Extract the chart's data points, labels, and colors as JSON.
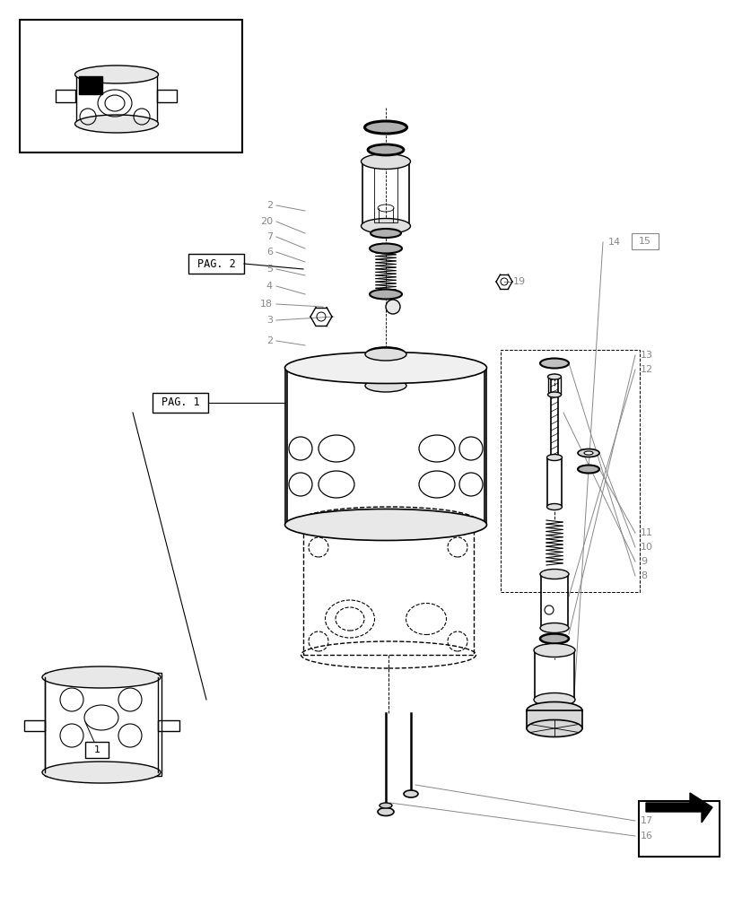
{
  "bg_color": "#ffffff",
  "line_color": "#000000",
  "gray_color": "#888888",
  "light_gray": "#cccccc",
  "page_labels": {
    "PAG. 1": [
      175,
      450
    ],
    "PAG. 2": [
      215,
      295
    ]
  }
}
